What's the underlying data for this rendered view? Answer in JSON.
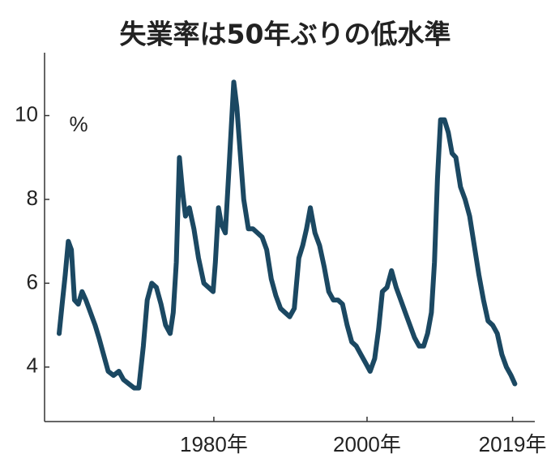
{
  "chart_data": {
    "type": "line",
    "title": "失業率は50年ぶりの低水準",
    "annotation": "%",
    "x": [
      1959.8,
      1960.2,
      1960.6,
      1961.0,
      1961.4,
      1961.8,
      1962.3,
      1962.8,
      1963.3,
      1963.9,
      1964.5,
      1965.0,
      1965.6,
      1966.2,
      1966.9,
      1967.6,
      1968.2,
      1968.9,
      1969.6,
      1970.2,
      1970.8,
      1971.3,
      1971.9,
      1972.5,
      1973.1,
      1973.7,
      1974.3,
      1974.7,
      1975.1,
      1975.5,
      1975.9,
      1976.3,
      1976.8,
      1977.4,
      1978.0,
      1978.7,
      1979.3,
      1979.9,
      1980.2,
      1980.6,
      1981.0,
      1981.5,
      1982.0,
      1982.6,
      1983.0,
      1983.4,
      1983.9,
      1984.5,
      1985.1,
      1985.7,
      1986.3,
      1986.9,
      1987.5,
      1988.1,
      1988.7,
      1989.3,
      1989.9,
      1990.5,
      1991.1,
      1991.6,
      1992.1,
      1992.6,
      1993.2,
      1993.8,
      1994.4,
      1995.0,
      1995.6,
      1996.2,
      1996.8,
      1997.4,
      1998.0,
      1998.6,
      1999.2,
      1999.8,
      2000.4,
      2001.0,
      2001.5,
      2002.0,
      2002.6,
      2003.2,
      2003.8,
      2004.4,
      2005.0,
      2005.6,
      2006.2,
      2006.8,
      2007.4,
      2007.9,
      2008.4,
      2008.8,
      2009.2,
      2009.6,
      2010.1,
      2010.6,
      2011.1,
      2011.6,
      2012.2,
      2012.8,
      2013.4,
      2014.0,
      2014.6,
      2015.2,
      2015.8,
      2016.4,
      2017.0,
      2017.6,
      2018.2,
      2018.8,
      2019.3
    ],
    "series": [
      {
        "name": "失業率",
        "color": "#1b4862",
        "values": [
          4.8,
          5.5,
          6.2,
          7.0,
          6.8,
          5.6,
          5.5,
          5.8,
          5.6,
          5.3,
          5.0,
          4.7,
          4.3,
          3.9,
          3.8,
          3.9,
          3.7,
          3.6,
          3.5,
          3.5,
          4.5,
          5.6,
          6.0,
          5.9,
          5.5,
          5.0,
          4.8,
          5.3,
          6.5,
          9.0,
          8.2,
          7.6,
          7.8,
          7.3,
          6.6,
          6.0,
          5.9,
          5.8,
          6.5,
          7.8,
          7.4,
          7.2,
          8.8,
          10.8,
          10.2,
          9.2,
          8.0,
          7.3,
          7.3,
          7.2,
          7.1,
          6.8,
          6.1,
          5.7,
          5.4,
          5.3,
          5.2,
          5.4,
          6.6,
          6.9,
          7.3,
          7.8,
          7.2,
          6.9,
          6.4,
          5.8,
          5.6,
          5.6,
          5.5,
          5.0,
          4.6,
          4.5,
          4.3,
          4.1,
          3.9,
          4.2,
          4.9,
          5.8,
          5.9,
          6.3,
          5.9,
          5.6,
          5.3,
          5.0,
          4.7,
          4.5,
          4.5,
          4.8,
          5.3,
          6.5,
          8.5,
          9.9,
          9.9,
          9.6,
          9.1,
          9.0,
          8.3,
          8.0,
          7.6,
          6.9,
          6.2,
          5.6,
          5.1,
          5.0,
          4.8,
          4.3,
          4.0,
          3.8,
          3.6
        ]
      }
    ],
    "xlim": [
      1957.9,
      2021.9
    ],
    "ylim": [
      2.7,
      11.5
    ],
    "xticks": [
      {
        "value": 1980,
        "label": "1980年"
      },
      {
        "value": 2000,
        "label": "2000年"
      },
      {
        "value": 2019,
        "label": "2019年"
      }
    ],
    "yticks": [
      4,
      6,
      8,
      10
    ]
  }
}
